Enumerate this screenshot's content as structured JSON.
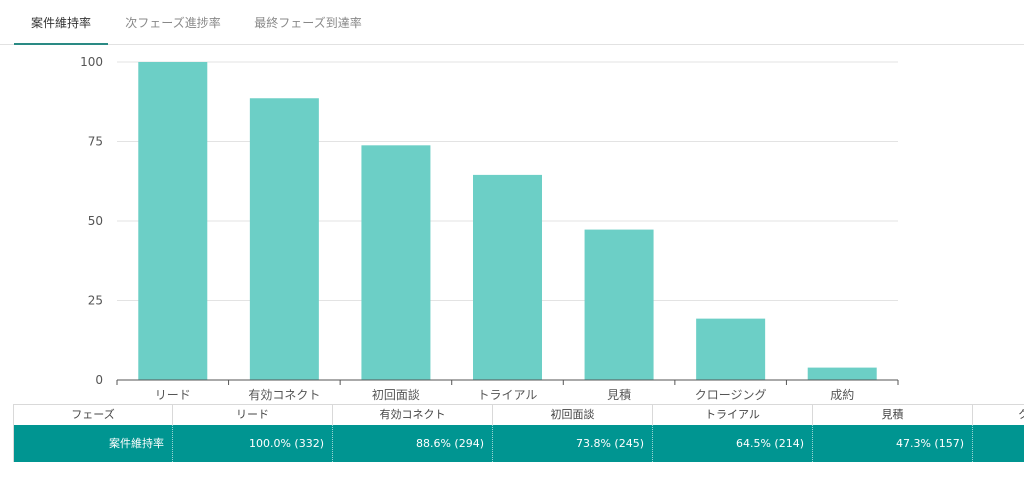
{
  "tabs": [
    {
      "label": "案件維持率",
      "active": true
    },
    {
      "label": "次フェーズ進捗率",
      "active": false
    },
    {
      "label": "最終フェーズ到達率",
      "active": false
    }
  ],
  "colors": {
    "bar": "#6ccfc6",
    "table_row": "#009591",
    "tab_underline": "#2a8a84"
  },
  "chart_data": {
    "type": "bar",
    "categories": [
      "リード",
      "有効コネクト",
      "初回面談",
      "トライアル",
      "見積",
      "クロージング",
      "成約"
    ],
    "values": [
      100,
      88.6,
      73.8,
      64.5,
      47.3,
      19.3,
      3.9
    ],
    "ylim": [
      0,
      100
    ],
    "yticks": [
      0,
      25,
      50,
      75,
      100
    ],
    "grid": true
  },
  "table": {
    "header": [
      "フェーズ",
      "リード",
      "有効コネクト",
      "初回面談",
      "トライアル",
      "見積",
      "ク"
    ],
    "row_label": "案件維持率",
    "row_values": [
      "100.0% (332)",
      "88.6% (294)",
      "73.8% (245)",
      "64.5% (214)",
      "47.3% (157)",
      ""
    ]
  }
}
